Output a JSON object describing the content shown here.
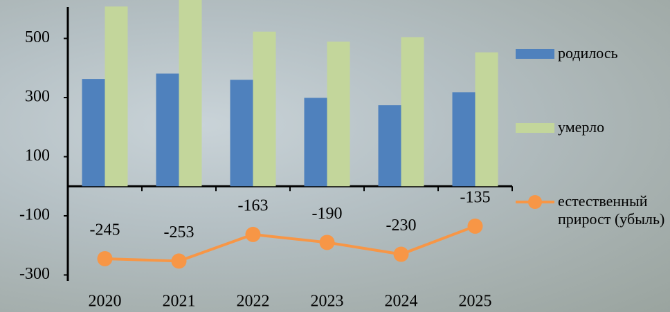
{
  "chart_data": {
    "type": "bar-line",
    "categories": [
      "2020",
      "2021",
      "2022",
      "2023",
      "2024",
      "2025"
    ],
    "series": [
      {
        "name": "родилось",
        "type": "bar",
        "color": "#4f81bd",
        "values": [
          363,
          381,
          360,
          299,
          274,
          318
        ]
      },
      {
        "name": "умерло",
        "type": "bar",
        "color": "#c3d69b",
        "values": [
          608,
          634,
          523,
          489,
          504,
          453
        ]
      },
      {
        "name": "естественный прирост (убыль)",
        "type": "line",
        "color": "#f79646",
        "values": [
          -245,
          -253,
          -163,
          -190,
          -230,
          -135
        ]
      }
    ],
    "ylim": [
      -320,
      630
    ],
    "yticks": [
      -300,
      -100,
      100,
      300,
      500
    ],
    "grid": false,
    "legend": "right"
  }
}
